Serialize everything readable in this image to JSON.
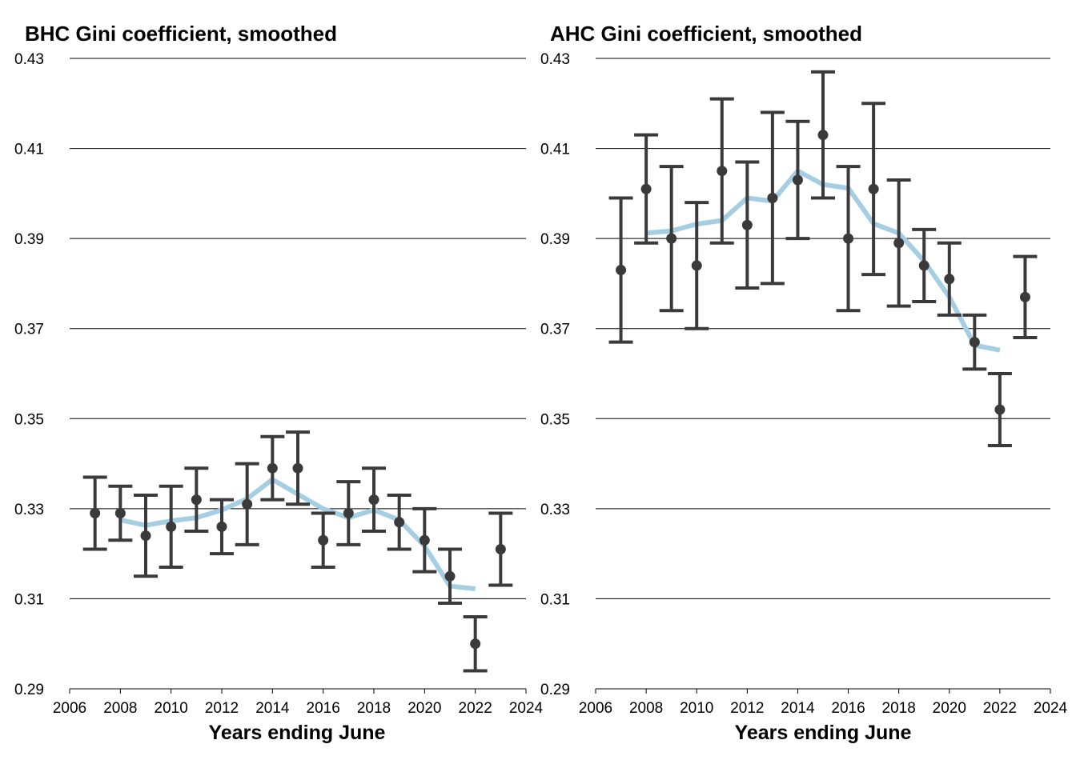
{
  "colors": {
    "smooth_line": "#a6cee3",
    "points": "#3a3a3a",
    "grid": "#000000",
    "background": "#ffffff"
  },
  "chart_data": [
    {
      "type": "line",
      "title": "BHC Gini coefficient, smoothed",
      "xlabel": "Years ending June",
      "ylabel": "",
      "xlim": [
        2006,
        2024
      ],
      "ylim": [
        0.29,
        0.43
      ],
      "xticks": [
        "2006",
        "2008",
        "2010",
        "2012",
        "2014",
        "2016",
        "2018",
        "2020",
        "2022",
        "2024"
      ],
      "yticks": [
        "0.29",
        "0.31",
        "0.33",
        "0.35",
        "0.37",
        "0.39",
        "0.41",
        "0.43"
      ],
      "grid": true,
      "points": [
        {
          "x": 2007,
          "y": 0.329,
          "low": 0.321,
          "high": 0.337
        },
        {
          "x": 2008,
          "y": 0.329,
          "low": 0.323,
          "high": 0.335
        },
        {
          "x": 2009,
          "y": 0.324,
          "low": 0.315,
          "high": 0.333
        },
        {
          "x": 2010,
          "y": 0.326,
          "low": 0.317,
          "high": 0.335
        },
        {
          "x": 2011,
          "y": 0.332,
          "low": 0.325,
          "high": 0.339
        },
        {
          "x": 2012,
          "y": 0.326,
          "low": 0.32,
          "high": 0.332
        },
        {
          "x": 2013,
          "y": 0.331,
          "low": 0.322,
          "high": 0.34
        },
        {
          "x": 2014,
          "y": 0.339,
          "low": 0.332,
          "high": 0.346
        },
        {
          "x": 2015,
          "y": 0.339,
          "low": 0.331,
          "high": 0.347
        },
        {
          "x": 2016,
          "y": 0.323,
          "low": 0.317,
          "high": 0.329
        },
        {
          "x": 2017,
          "y": 0.329,
          "low": 0.322,
          "high": 0.336
        },
        {
          "x": 2018,
          "y": 0.332,
          "low": 0.325,
          "high": 0.339
        },
        {
          "x": 2019,
          "y": 0.327,
          "low": 0.321,
          "high": 0.333
        },
        {
          "x": 2020,
          "y": 0.323,
          "low": 0.316,
          "high": 0.33
        },
        {
          "x": 2021,
          "y": 0.315,
          "low": 0.309,
          "high": 0.321
        },
        {
          "x": 2022,
          "y": 0.3,
          "low": 0.294,
          "high": 0.306
        },
        {
          "x": 2023,
          "y": 0.321,
          "low": 0.313,
          "high": 0.329
        }
      ],
      "smoothed": [
        {
          "x": 2008,
          "y": 0.3275
        },
        {
          "x": 2009,
          "y": 0.3263
        },
        {
          "x": 2010,
          "y": 0.3273
        },
        {
          "x": 2011,
          "y": 0.328
        },
        {
          "x": 2012,
          "y": 0.3297
        },
        {
          "x": 2013,
          "y": 0.3322
        },
        {
          "x": 2014,
          "y": 0.3365
        },
        {
          "x": 2015,
          "y": 0.3332
        },
        {
          "x": 2016,
          "y": 0.33
        },
        {
          "x": 2017,
          "y": 0.328
        },
        {
          "x": 2018,
          "y": 0.3297
        },
        {
          "x": 2019,
          "y": 0.3275
        },
        {
          "x": 2020,
          "y": 0.3217
        },
        {
          "x": 2021,
          "y": 0.3128
        },
        {
          "x": 2022,
          "y": 0.3122
        }
      ]
    },
    {
      "type": "line",
      "title": "AHC Gini coefficient, smoothed",
      "xlabel": "Years ending June",
      "ylabel": "",
      "xlim": [
        2006,
        2024
      ],
      "ylim": [
        0.29,
        0.43
      ],
      "xticks": [
        "2006",
        "2008",
        "2010",
        "2012",
        "2014",
        "2016",
        "2018",
        "2020",
        "2022",
        "2024"
      ],
      "yticks": [
        "0.29",
        "0.31",
        "0.33",
        "0.35",
        "0.37",
        "0.39",
        "0.41",
        "0.43"
      ],
      "grid": true,
      "points": [
        {
          "x": 2007,
          "y": 0.383,
          "low": 0.367,
          "high": 0.399
        },
        {
          "x": 2008,
          "y": 0.401,
          "low": 0.389,
          "high": 0.413
        },
        {
          "x": 2009,
          "y": 0.39,
          "low": 0.374,
          "high": 0.406
        },
        {
          "x": 2010,
          "y": 0.384,
          "low": 0.37,
          "high": 0.398
        },
        {
          "x": 2011,
          "y": 0.405,
          "low": 0.389,
          "high": 0.421
        },
        {
          "x": 2012,
          "y": 0.393,
          "low": 0.379,
          "high": 0.407
        },
        {
          "x": 2013,
          "y": 0.399,
          "low": 0.38,
          "high": 0.418
        },
        {
          "x": 2014,
          "y": 0.403,
          "low": 0.39,
          "high": 0.416
        },
        {
          "x": 2015,
          "y": 0.413,
          "low": 0.399,
          "high": 0.427
        },
        {
          "x": 2016,
          "y": 0.39,
          "low": 0.374,
          "high": 0.406
        },
        {
          "x": 2017,
          "y": 0.401,
          "low": 0.382,
          "high": 0.42
        },
        {
          "x": 2018,
          "y": 0.389,
          "low": 0.375,
          "high": 0.403
        },
        {
          "x": 2019,
          "y": 0.384,
          "low": 0.376,
          "high": 0.392
        },
        {
          "x": 2020,
          "y": 0.381,
          "low": 0.373,
          "high": 0.389
        },
        {
          "x": 2021,
          "y": 0.367,
          "low": 0.361,
          "high": 0.373
        },
        {
          "x": 2022,
          "y": 0.352,
          "low": 0.344,
          "high": 0.36
        },
        {
          "x": 2023,
          "y": 0.377,
          "low": 0.368,
          "high": 0.386
        }
      ],
      "smoothed": [
        {
          "x": 2008,
          "y": 0.3912
        },
        {
          "x": 2009,
          "y": 0.3917
        },
        {
          "x": 2010,
          "y": 0.3932
        },
        {
          "x": 2011,
          "y": 0.394
        },
        {
          "x": 2012,
          "y": 0.399
        },
        {
          "x": 2013,
          "y": 0.3983
        },
        {
          "x": 2014,
          "y": 0.405
        },
        {
          "x": 2015,
          "y": 0.402
        },
        {
          "x": 2016,
          "y": 0.4012
        },
        {
          "x": 2017,
          "y": 0.3933
        },
        {
          "x": 2018,
          "y": 0.3912
        },
        {
          "x": 2019,
          "y": 0.385
        },
        {
          "x": 2020,
          "y": 0.377
        },
        {
          "x": 2021,
          "y": 0.3663
        },
        {
          "x": 2022,
          "y": 0.3652
        }
      ]
    }
  ]
}
